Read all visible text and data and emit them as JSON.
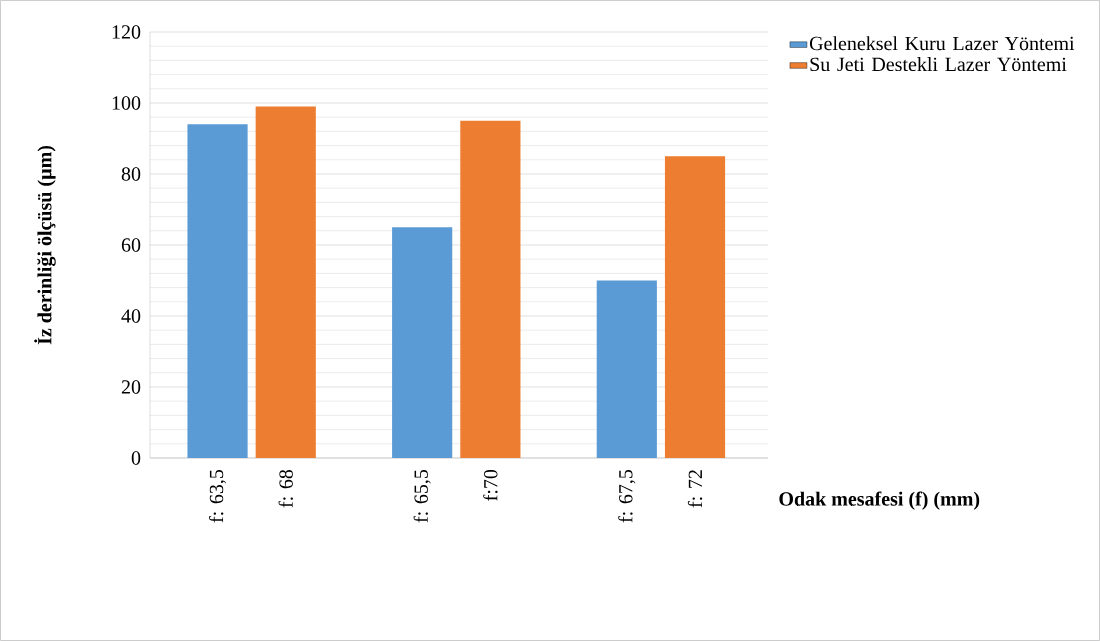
{
  "chart_data": {
    "type": "bar",
    "ylabel": "İz derinliği ölçüsü (µm)",
    "xlabel": "Odak mesafesi (f) (mm)",
    "categories": [
      "f: 63,5",
      "f: 68",
      null,
      "f: 65,5",
      "f:70",
      null,
      "f: 67,5",
      "f: 72"
    ],
    "series": [
      {
        "name": "Geleneksel Kuru Lazer Yöntemi",
        "color": "#5b9bd5",
        "values": [
          94,
          null,
          null,
          65,
          null,
          null,
          50,
          null
        ]
      },
      {
        "name": "Su Jeti Destekli Lazer Yöntemi",
        "color": "#ed7d31",
        "values": [
          null,
          99,
          null,
          null,
          95,
          null,
          null,
          85
        ]
      }
    ],
    "ylim": [
      0,
      120
    ],
    "yticks": [
      0,
      20,
      40,
      60,
      80,
      100,
      120
    ],
    "grid": "y",
    "legend": "top right"
  }
}
